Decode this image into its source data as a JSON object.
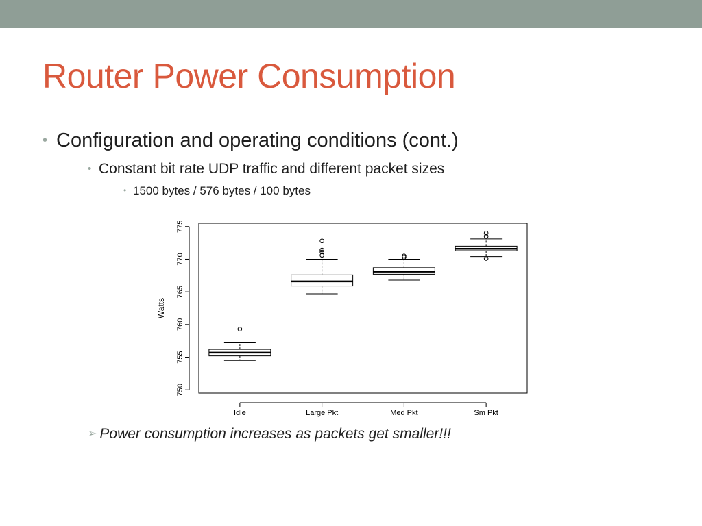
{
  "slide": {
    "title": "Router Power Consumption",
    "bullets": [
      "Configuration and operating conditions (cont.)",
      "Constant bit rate UDP traffic and different packet sizes",
      "1500 bytes / 576 bytes / 100 bytes"
    ],
    "conclusion": "Power consumption increases as packets get smaller!!!"
  },
  "chart_data": {
    "type": "boxplot",
    "title": "",
    "xlabel": "",
    "ylabel": "Watts",
    "ylim": [
      749.5,
      775.5
    ],
    "yticks": [
      750,
      755,
      760,
      765,
      770,
      775
    ],
    "categories": [
      "Idle",
      "Large Pkt",
      "Med Pkt",
      "Sm Pkt"
    ],
    "boxes": [
      {
        "name": "Idle",
        "whisker_low": 754.5,
        "q1": 755.2,
        "median": 755.7,
        "q3": 756.2,
        "whisker_high": 757.2,
        "outliers": [
          759.3
        ]
      },
      {
        "name": "Large Pkt",
        "whisker_low": 764.7,
        "q1": 765.9,
        "median": 766.6,
        "q3": 767.6,
        "whisker_high": 770.0,
        "outliers": [
          770.6,
          771.1,
          771.4,
          772.8
        ]
      },
      {
        "name": "Med Pkt",
        "whisker_low": 766.8,
        "q1": 767.7,
        "median": 768.1,
        "q3": 768.7,
        "whisker_high": 770.0,
        "outliers": [
          770.3,
          770.5
        ]
      },
      {
        "name": "Sm Pkt",
        "whisker_low": 770.4,
        "q1": 771.3,
        "median": 771.6,
        "q3": 772.0,
        "whisker_high": 773.1,
        "outliers": [
          770.1,
          773.5,
          774.0
        ]
      }
    ],
    "grid": false,
    "colors": {
      "box": "#000000",
      "fill": "#ffffff"
    }
  }
}
